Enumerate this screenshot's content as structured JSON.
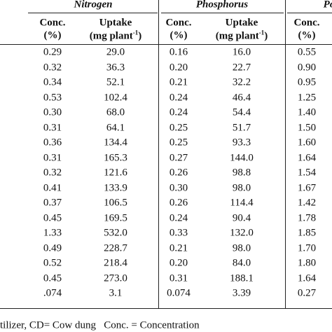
{
  "header": {
    "groups": [
      "Nitrogen",
      "Phosphorus",
      "Po"
    ],
    "columns": [
      {
        "line1": "Conc.",
        "line2": "(%)"
      },
      {
        "line1": "Uptake",
        "line2": "(mg plant",
        "sup": "-1",
        "close": ")"
      },
      {
        "line1": "Conc.",
        "line2": "(%)"
      },
      {
        "line1": "Uptake",
        "line2": "(mg plant",
        "sup": "-1",
        "close": ")"
      },
      {
        "line1": "Conc.",
        "line2": "(%)"
      }
    ]
  },
  "table": {
    "rows": [
      [
        "0.29",
        "29.0",
        "0.16",
        "16.0",
        "0.55"
      ],
      [
        "0.32",
        "36.3",
        "0.20",
        "22.7",
        "0.90"
      ],
      [
        "0.34",
        "52.1",
        "0.21",
        "32.2",
        "0.95"
      ],
      [
        "0.53",
        "102.4",
        "0.24",
        "46.4",
        "1.25"
      ],
      [
        "0.30",
        "68.0",
        "0.24",
        "54.4",
        "1.40"
      ],
      [
        "0.31",
        "64.1",
        "0.25",
        "51.7",
        "1.50"
      ],
      [
        "0.36",
        "134.4",
        "0.25",
        "93.3",
        "1.60"
      ],
      [
        "0.31",
        "165.3",
        "0.27",
        "144.0",
        "1.64"
      ],
      [
        "0.32",
        "121.6",
        "0.26",
        "98.8",
        "1.54"
      ],
      [
        "0.41",
        "133.9",
        "0.30",
        "98.0",
        "1.67"
      ],
      [
        "0.37",
        "106.5",
        "0.26",
        "114.4",
        "1.42"
      ],
      [
        "0.45",
        "169.5",
        "0.24",
        "90.4",
        "1.78"
      ],
      [
        "1.33",
        "532.0",
        "0.33",
        "132.0",
        "1.85"
      ],
      [
        "0.49",
        "228.7",
        "0.21",
        "98.0",
        "1.70"
      ],
      [
        "0.52",
        "218.4",
        "0.20",
        "84.0",
        "1.80"
      ],
      [
        "0.45",
        "273.0",
        "0.31",
        "188.1",
        "1.64"
      ],
      [
        ".074",
        "3.1",
        "0.074",
        "3.39",
        "0.27"
      ]
    ]
  },
  "footer": "tilizer, CD= Cow dung   Conc. = Concentration"
}
